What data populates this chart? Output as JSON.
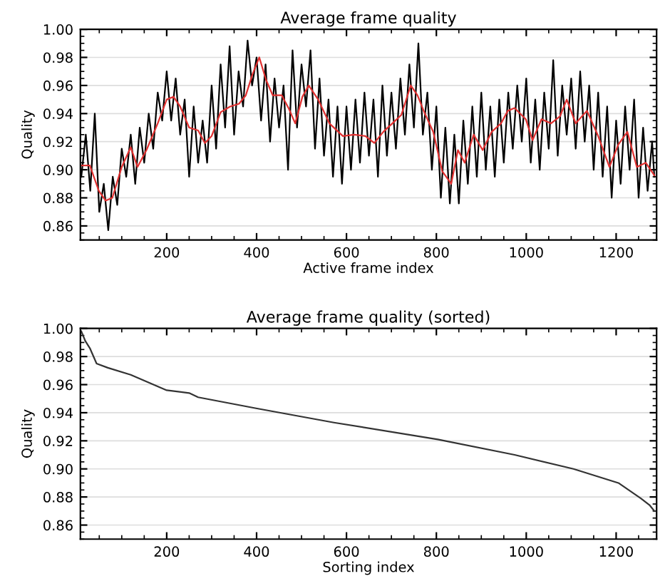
{
  "chart_data": [
    {
      "type": "line",
      "title": "Average frame quality",
      "xlabel": "Active frame index",
      "ylabel": "Quality",
      "xlim": [
        8,
        1290
      ],
      "ylim": [
        0.85,
        1.0
      ],
      "xticks": [
        200,
        400,
        600,
        800,
        1000,
        1200
      ],
      "yticks": [
        {
          "value": 0.86,
          "label": "0.86"
        },
        {
          "value": 0.88,
          "label": "0.88"
        },
        {
          "value": 0.9,
          "label": "0.90"
        },
        {
          "value": 0.92,
          "label": "0.92"
        },
        {
          "value": 0.94,
          "label": "0.94"
        },
        {
          "value": 0.96,
          "label": "0.96"
        },
        {
          "value": 0.98,
          "label": "0.98"
        },
        {
          "value": 1.0,
          "label": "1.00"
        }
      ],
      "grid": "y",
      "legend": false,
      "line_style": "solid",
      "marker": "none",
      "series": [
        {
          "color": "#000000",
          "x": [
            10,
            20,
            30,
            40,
            50,
            60,
            70,
            80,
            90,
            100,
            110,
            120,
            130,
            140,
            150,
            160,
            170,
            180,
            190,
            200,
            210,
            220,
            230,
            240,
            250,
            260,
            270,
            280,
            290,
            300,
            310,
            320,
            330,
            340,
            350,
            360,
            370,
            380,
            390,
            400,
            410,
            420,
            430,
            440,
            450,
            460,
            470,
            480,
            490,
            500,
            510,
            520,
            530,
            540,
            550,
            560,
            570,
            580,
            590,
            600,
            610,
            620,
            630,
            640,
            650,
            660,
            670,
            680,
            690,
            700,
            710,
            720,
            730,
            740,
            750,
            760,
            770,
            780,
            790,
            800,
            810,
            820,
            830,
            840,
            850,
            860,
            870,
            880,
            890,
            900,
            910,
            920,
            930,
            940,
            950,
            960,
            970,
            980,
            990,
            1000,
            1010,
            1020,
            1030,
            1040,
            1050,
            1060,
            1070,
            1080,
            1090,
            1100,
            1110,
            1120,
            1130,
            1140,
            1150,
            1160,
            1170,
            1180,
            1190,
            1200,
            1210,
            1220,
            1230,
            1240,
            1250,
            1260,
            1270,
            1280,
            1285
          ],
          "values": [
            0.895,
            0.925,
            0.885,
            0.94,
            0.87,
            0.89,
            0.857,
            0.895,
            0.875,
            0.915,
            0.895,
            0.925,
            0.89,
            0.93,
            0.905,
            0.94,
            0.915,
            0.955,
            0.935,
            0.97,
            0.935,
            0.965,
            0.925,
            0.95,
            0.895,
            0.945,
            0.905,
            0.935,
            0.905,
            0.96,
            0.915,
            0.975,
            0.93,
            0.988,
            0.925,
            0.97,
            0.945,
            0.992,
            0.96,
            0.98,
            0.935,
            0.975,
            0.92,
            0.965,
            0.93,
            0.96,
            0.9,
            0.985,
            0.93,
            0.975,
            0.945,
            0.985,
            0.915,
            0.965,
            0.91,
            0.95,
            0.895,
            0.945,
            0.89,
            0.945,
            0.9,
            0.95,
            0.905,
            0.955,
            0.91,
            0.95,
            0.895,
            0.96,
            0.91,
            0.955,
            0.915,
            0.965,
            0.925,
            0.975,
            0.93,
            0.99,
            0.925,
            0.955,
            0.9,
            0.945,
            0.88,
            0.93,
            0.876,
            0.925,
            0.876,
            0.935,
            0.89,
            0.945,
            0.895,
            0.955,
            0.9,
            0.945,
            0.895,
            0.95,
            0.905,
            0.955,
            0.915,
            0.96,
            0.92,
            0.965,
            0.905,
            0.95,
            0.9,
            0.955,
            0.915,
            0.978,
            0.91,
            0.96,
            0.925,
            0.965,
            0.915,
            0.97,
            0.92,
            0.96,
            0.9,
            0.955,
            0.895,
            0.945,
            0.88,
            0.935,
            0.89,
            0.945,
            0.9,
            0.95,
            0.88,
            0.93,
            0.885,
            0.92,
            0.895
          ]
        },
        {
          "color": "#e03030",
          "x": [
            10,
            29,
            49,
            64,
            79,
            100,
            120,
            135,
            155,
            180,
            200,
            215,
            230,
            250,
            270,
            285,
            300,
            320,
            341,
            361,
            376,
            391,
            406,
            421,
            436,
            456,
            471,
            486,
            502,
            516,
            537,
            562,
            592,
            617,
            642,
            662,
            682,
            702,
            722,
            743,
            758,
            773,
            793,
            813,
            833,
            848,
            863,
            883,
            903,
            923,
            944,
            959,
            974,
            999,
            1014,
            1034,
            1055,
            1075,
            1090,
            1110,
            1135,
            1160,
            1185,
            1205,
            1225,
            1246,
            1266,
            1285
          ],
          "values": [
            0.903,
            0.903,
            0.885,
            0.878,
            0.88,
            0.902,
            0.916,
            0.902,
            0.914,
            0.933,
            0.95,
            0.952,
            0.945,
            0.93,
            0.928,
            0.919,
            0.924,
            0.941,
            0.945,
            0.947,
            0.953,
            0.968,
            0.98,
            0.964,
            0.953,
            0.953,
            0.944,
            0.933,
            0.952,
            0.96,
            0.95,
            0.933,
            0.924,
            0.925,
            0.924,
            0.919,
            0.927,
            0.933,
            0.939,
            0.96,
            0.953,
            0.941,
            0.927,
            0.899,
            0.89,
            0.914,
            0.905,
            0.925,
            0.914,
            0.927,
            0.933,
            0.942,
            0.944,
            0.936,
            0.921,
            0.936,
            0.933,
            0.938,
            0.95,
            0.933,
            0.942,
            0.924,
            0.902,
            0.918,
            0.927,
            0.902,
            0.905,
            0.896
          ]
        }
      ]
    },
    {
      "type": "line",
      "title": "Average frame quality (sorted)",
      "xlabel": "Sorting index",
      "ylabel": "Quality",
      "xlim": [
        8,
        1290
      ],
      "ylim": [
        0.85,
        1.0
      ],
      "xticks": [
        200,
        400,
        600,
        800,
        1000,
        1200
      ],
      "yticks": [
        {
          "value": 0.86,
          "label": "0.86"
        },
        {
          "value": 0.88,
          "label": "0.88"
        },
        {
          "value": 0.9,
          "label": "0.90"
        },
        {
          "value": 0.92,
          "label": "0.92"
        },
        {
          "value": 0.94,
          "label": "0.94"
        },
        {
          "value": 0.96,
          "label": "0.96"
        },
        {
          "value": 0.98,
          "label": "0.98"
        },
        {
          "value": 1.0,
          "label": "1.00"
        }
      ],
      "grid": "y",
      "legend": false,
      "line_style": "solid",
      "marker": "none",
      "series": [
        {
          "color": "#333333",
          "x": [
            10,
            19,
            29,
            44,
            69,
            120,
            200,
            250,
            270,
            401,
            572,
            803,
            974,
            1105,
            1205,
            1255,
            1275,
            1285
          ],
          "values": [
            0.998,
            0.991,
            0.986,
            0.975,
            0.972,
            0.967,
            0.956,
            0.954,
            0.951,
            0.943,
            0.933,
            0.921,
            0.91,
            0.9,
            0.89,
            0.879,
            0.874,
            0.87
          ]
        }
      ]
    }
  ]
}
